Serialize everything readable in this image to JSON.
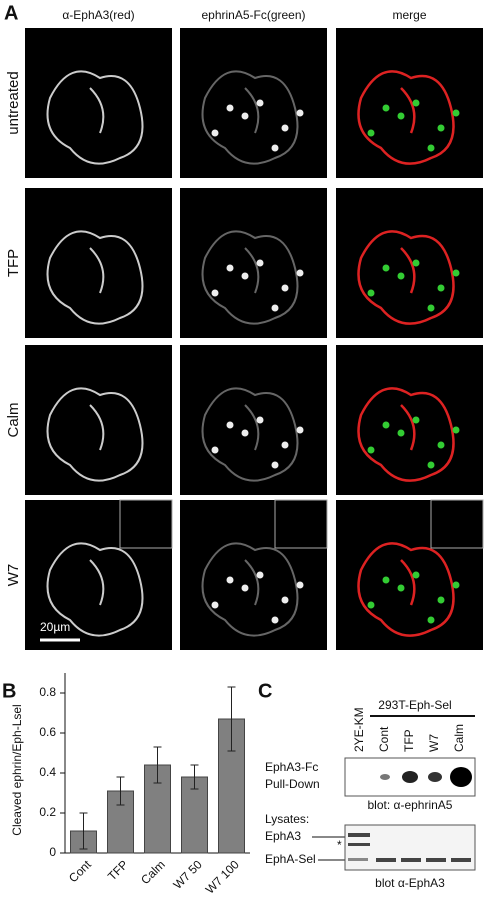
{
  "panels": {
    "a": "A",
    "b": "B",
    "c": "C"
  },
  "panel_a": {
    "columns": [
      "α-EphA3(red)",
      "ephrinA5-Fc(green)",
      "merge"
    ],
    "rows": [
      "untreated",
      "TFP",
      "Calm",
      "W7"
    ],
    "scale_bar": "20µm"
  },
  "chart_data": {
    "type": "bar",
    "ylabel": "Cleaved ephrin/Eph-Lsel",
    "categories": [
      "Cont",
      "TFP",
      "Calm",
      "W7 50",
      "W7 100"
    ],
    "values": [
      0.11,
      0.31,
      0.44,
      0.38,
      0.67
    ],
    "errors": [
      0.09,
      0.07,
      0.09,
      0.06,
      0.16
    ],
    "color": "#808080",
    "ylim": [
      0,
      0.9
    ],
    "yticks": [
      0,
      0.2,
      0.4,
      0.6,
      0.8
    ]
  },
  "panel_c": {
    "group_label": "293T-Eph-Sel",
    "lanes": [
      "2YE-KM",
      "Cont",
      "TFP",
      "W7",
      "Calm"
    ],
    "pull_down_label": [
      "EphA3-Fc",
      "Pull-Down"
    ],
    "pull_down_blot": "blot: α-ephrinA5",
    "lysates_label": "Lysates:",
    "bands": [
      "EphA3",
      "EphA-Sel"
    ],
    "asterisk": "*",
    "lysate_blot": "blot α-EphA3"
  }
}
